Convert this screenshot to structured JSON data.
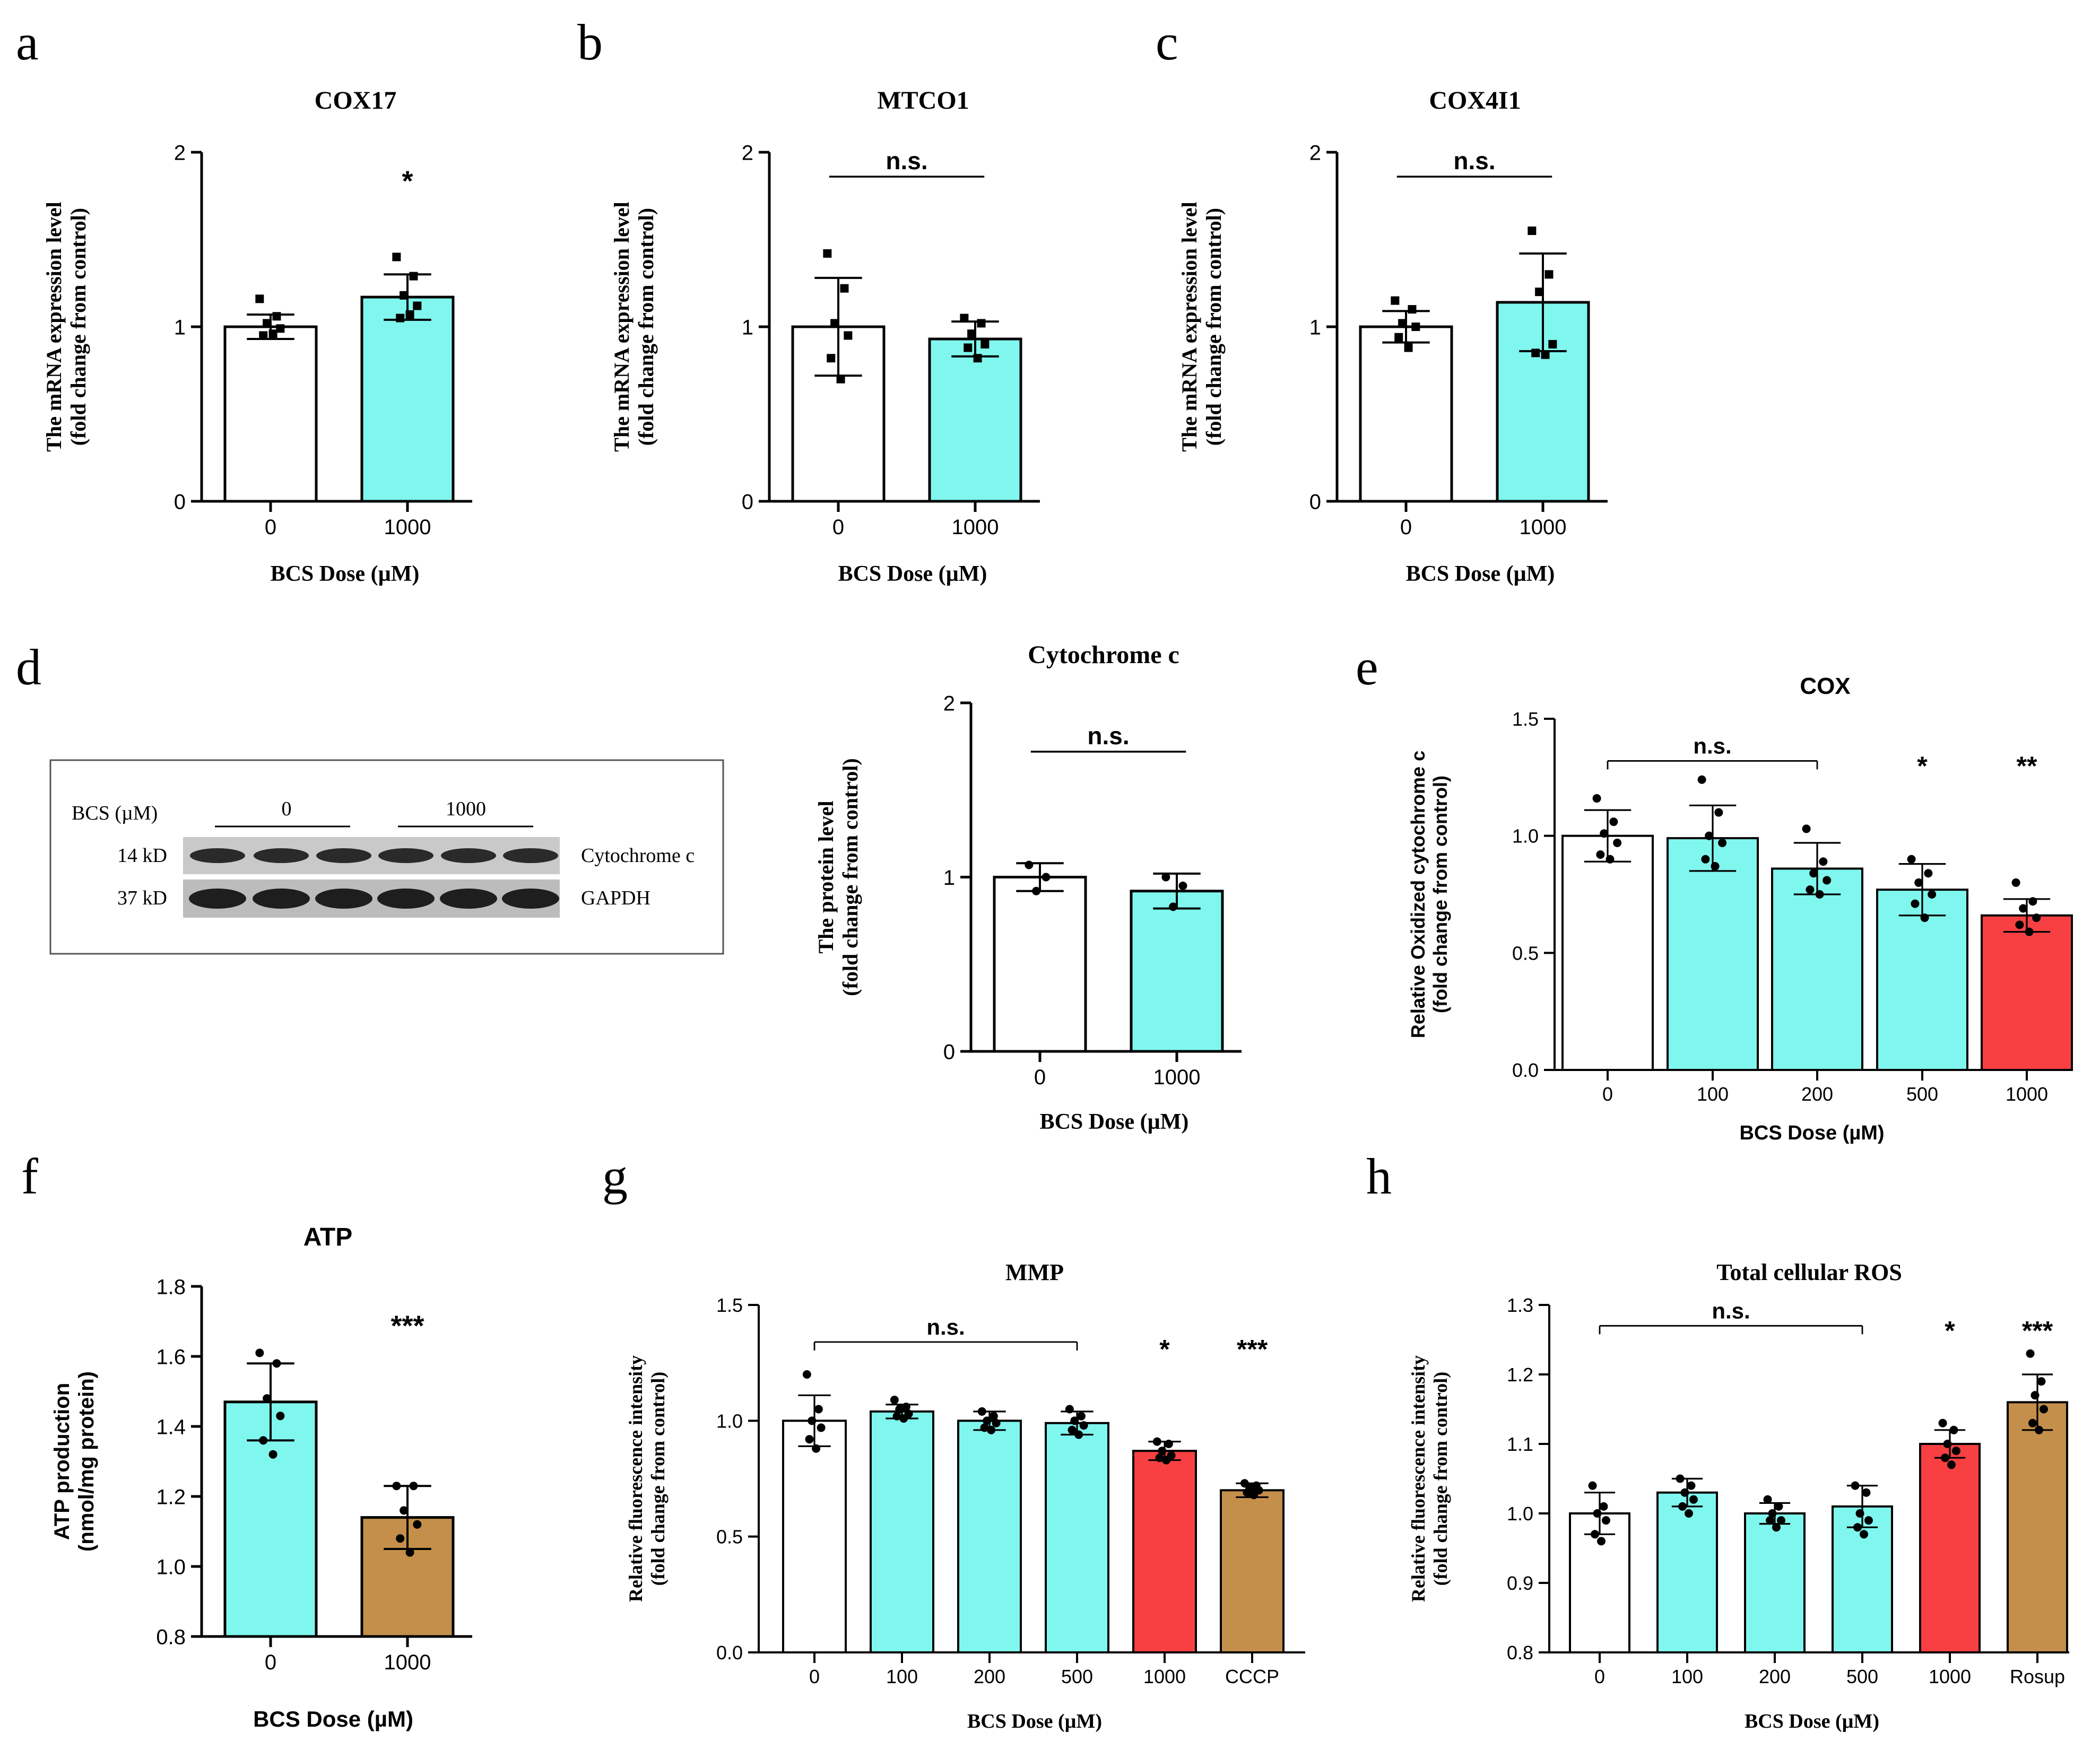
{
  "colors": {
    "white": "#ffffff",
    "cyan": "#80f7ee",
    "red": "#f84043",
    "tan": "#c38f4a",
    "black": "#000000",
    "blot_border": "#555555"
  },
  "panels": {
    "a": {
      "letter": "a"
    },
    "b": {
      "letter": "b"
    },
    "c": {
      "letter": "c"
    },
    "d": {
      "letter": "d"
    },
    "e": {
      "letter": "e"
    },
    "f": {
      "letter": "f"
    },
    "g": {
      "letter": "g"
    },
    "h": {
      "letter": "h"
    }
  },
  "blot": {
    "bcs_label": "BCS (µM)",
    "group_0": "0",
    "group_1000": "1000",
    "row1_kd": "14 kD",
    "row1_name": "Cytochrome c",
    "row2_kd": "37 kD",
    "row2_name": "GAPDH"
  },
  "chart_data": [
    {
      "id": "a",
      "type": "bar",
      "title": "COX17",
      "xlabel": "BCS Dose (µM)",
      "ylabel": [
        "The mRNA expression level",
        "(fold change from control)"
      ],
      "ylim": [
        0,
        2
      ],
      "yticks": [
        "0",
        "1",
        "2"
      ],
      "categories": [
        "0",
        "1000"
      ],
      "values": [
        1.0,
        1.17
      ],
      "errors": [
        0.07,
        0.13
      ],
      "colors": [
        "white",
        "cyan"
      ],
      "points": [
        [
          1.16,
          1.06,
          1.02,
          0.99,
          0.95,
          0.96
        ],
        [
          1.4,
          1.29,
          1.18,
          1.12,
          1.05,
          1.07
        ]
      ],
      "annotations": [
        {
          "text": "*",
          "cat": 1,
          "y": 1.78,
          "kind": "star"
        }
      ],
      "brackets": []
    },
    {
      "id": "b",
      "type": "bar",
      "title": "MTCO1",
      "xlabel": "BCS Dose (µM)",
      "ylabel": [
        "The mRNA expression level",
        "(fold change from control)"
      ],
      "ylim": [
        0,
        2
      ],
      "yticks": [
        "0",
        "1",
        "2"
      ],
      "categories": [
        "0",
        "1000"
      ],
      "values": [
        1.0,
        0.93
      ],
      "errors": [
        0.28,
        0.1
      ],
      "colors": [
        "white",
        "cyan"
      ],
      "points": [
        [
          1.42,
          1.22,
          1.02,
          0.95,
          0.82,
          0.7
        ],
        [
          1.05,
          1.02,
          0.96,
          0.9,
          0.88,
          0.82
        ]
      ],
      "annotations": [],
      "brackets": [
        {
          "from": 0,
          "to": 1,
          "y": 1.86,
          "text": "n.s."
        }
      ]
    },
    {
      "id": "c",
      "type": "bar",
      "title": "COX4I1",
      "xlabel": "BCS Dose (µM)",
      "ylabel": [
        "The mRNA expression level",
        "(fold change from control)"
      ],
      "ylim": [
        0,
        2
      ],
      "yticks": [
        "0",
        "1",
        "2"
      ],
      "categories": [
        "0",
        "1000"
      ],
      "values": [
        1.0,
        1.14
      ],
      "errors": [
        0.09,
        0.28
      ],
      "colors": [
        "white",
        "cyan"
      ],
      "points": [
        [
          1.15,
          1.1,
          1.02,
          1.0,
          0.94,
          0.88
        ],
        [
          1.55,
          1.3,
          1.2,
          0.9,
          0.85,
          0.84
        ]
      ],
      "annotations": [],
      "brackets": [
        {
          "from": 0,
          "to": 1,
          "y": 1.86,
          "text": "n.s."
        }
      ]
    },
    {
      "id": "d",
      "type": "bar",
      "title": "Cytochrome c",
      "xlabel": "BCS Dose (µM)",
      "ylabel": [
        "The protein level",
        "(fold change from control)"
      ],
      "ylim": [
        0,
        2
      ],
      "yticks": [
        "0",
        "1",
        "2"
      ],
      "categories": [
        "0",
        "1000"
      ],
      "values": [
        1.0,
        0.92
      ],
      "errors": [
        0.08,
        0.1
      ],
      "colors": [
        "white",
        "cyan"
      ],
      "points": [
        [
          1.07,
          1.0,
          0.92
        ],
        [
          1.0,
          0.95,
          0.83
        ]
      ],
      "annotations": [],
      "brackets": [
        {
          "from": 0,
          "to": 1,
          "y": 1.72,
          "text": "n.s."
        }
      ]
    },
    {
      "id": "e",
      "type": "bar",
      "title": "COX",
      "xlabel": "BCS Dose (µM)",
      "ylabel": [
        "Relative Oxidized cytochrome c",
        "(fold change from control)"
      ],
      "ylim": [
        0,
        1.5
      ],
      "yticks": [
        "0.0",
        "0.5",
        "1.0",
        "1.5"
      ],
      "categories": [
        "0",
        "100",
        "200",
        "500",
        "1000"
      ],
      "values": [
        1.0,
        0.99,
        0.86,
        0.77,
        0.66
      ],
      "errors": [
        0.11,
        0.14,
        0.11,
        0.11,
        0.07
      ],
      "colors": [
        "white",
        "cyan",
        "cyan",
        "cyan",
        "red"
      ],
      "points": [
        [
          1.16,
          1.06,
          1.01,
          0.97,
          0.92,
          0.9
        ],
        [
          1.24,
          1.1,
          1.0,
          0.97,
          0.9,
          0.87
        ],
        [
          1.03,
          0.89,
          0.84,
          0.81,
          0.77,
          0.75
        ],
        [
          0.9,
          0.84,
          0.8,
          0.75,
          0.71,
          0.65
        ],
        [
          0.8,
          0.72,
          0.69,
          0.65,
          0.62,
          0.59
        ]
      ],
      "annotations": [
        {
          "text": "*",
          "cat": 3,
          "y": 1.26,
          "kind": "star"
        },
        {
          "text": "**",
          "cat": 4,
          "y": 1.26,
          "kind": "star"
        }
      ],
      "brackets": [
        {
          "from": 0,
          "to": 2,
          "y": 1.32,
          "text": "n.s."
        }
      ]
    },
    {
      "id": "f",
      "type": "bar",
      "title": "ATP",
      "xlabel": "BCS Dose (µM)",
      "ylabel": [
        "ATP production",
        "(nmol/mg protein)"
      ],
      "ylim": [
        0.8,
        1.8
      ],
      "yticks": [
        "0.8",
        "1.0",
        "1.2",
        "1.4",
        "1.6",
        "1.8"
      ],
      "categories": [
        "0",
        "1000"
      ],
      "values": [
        1.47,
        1.14
      ],
      "errors": [
        0.11,
        0.09
      ],
      "colors": [
        "cyan",
        "tan"
      ],
      "points": [
        [
          1.61,
          1.58,
          1.48,
          1.43,
          1.36,
          1.32
        ],
        [
          1.23,
          1.23,
          1.16,
          1.12,
          1.08,
          1.04
        ]
      ],
      "annotations": [
        {
          "text": "***",
          "cat": 1,
          "y": 1.66,
          "kind": "star"
        }
      ],
      "brackets": []
    },
    {
      "id": "g",
      "type": "bar",
      "title": "MMP",
      "xlabel": "BCS Dose (µM)",
      "ylabel": [
        "Relative fluorescence intensity",
        "(fold change from control)"
      ],
      "ylim": [
        0,
        1.5
      ],
      "yticks": [
        "0.0",
        "0.5",
        "1.0",
        "1.5"
      ],
      "categories": [
        "0",
        "100",
        "200",
        "500",
        "1000",
        "CCCP"
      ],
      "values": [
        1.0,
        1.04,
        1.0,
        0.99,
        0.87,
        0.7
      ],
      "errors": [
        0.11,
        0.03,
        0.04,
        0.05,
        0.04,
        0.03
      ],
      "colors": [
        "white",
        "cyan",
        "cyan",
        "cyan",
        "red",
        "tan"
      ],
      "points": [
        [
          1.2,
          1.05,
          1.0,
          0.97,
          0.92,
          0.88
        ],
        [
          1.09,
          1.06,
          1.05,
          1.03,
          1.02,
          1.01
        ],
        [
          1.04,
          1.02,
          1.0,
          0.99,
          0.97,
          0.96
        ],
        [
          1.05,
          1.02,
          1.0,
          0.98,
          0.96,
          0.94
        ],
        [
          0.91,
          0.9,
          0.87,
          0.85,
          0.84,
          0.83
        ],
        [
          0.73,
          0.72,
          0.71,
          0.7,
          0.69,
          0.68
        ]
      ],
      "annotations": [
        {
          "text": "*",
          "cat": 4,
          "y": 1.27,
          "kind": "star"
        },
        {
          "text": "***",
          "cat": 5,
          "y": 1.27,
          "kind": "star"
        }
      ],
      "brackets": [
        {
          "from": 0,
          "to": 3,
          "y": 1.34,
          "text": "n.s."
        }
      ]
    },
    {
      "id": "h",
      "type": "bar",
      "title": "Total cellular ROS",
      "xlabel": "BCS Dose (µM)",
      "ylabel": [
        "Relative fluorescence intensity",
        "(fold change from control)"
      ],
      "ylim": [
        0.8,
        1.3
      ],
      "yticks": [
        "0.8",
        "0.9",
        "1.0",
        "1.1",
        "1.2",
        "1.3"
      ],
      "categories": [
        "0",
        "100",
        "200",
        "500",
        "1000",
        "Rosup"
      ],
      "values": [
        1.0,
        1.03,
        1.0,
        1.01,
        1.1,
        1.16
      ],
      "errors": [
        0.03,
        0.02,
        0.015,
        0.03,
        0.02,
        0.04
      ],
      "colors": [
        "white",
        "cyan",
        "cyan",
        "cyan",
        "red",
        "tan"
      ],
      "points": [
        [
          1.04,
          1.01,
          1.0,
          0.99,
          0.97,
          0.96
        ],
        [
          1.05,
          1.04,
          1.03,
          1.02,
          1.01,
          1.0
        ],
        [
          1.02,
          1.01,
          1.0,
          0.99,
          0.99,
          0.98
        ],
        [
          1.04,
          1.03,
          1.0,
          0.99,
          0.98,
          0.97
        ],
        [
          1.13,
          1.12,
          1.1,
          1.09,
          1.08,
          1.07
        ],
        [
          1.23,
          1.19,
          1.17,
          1.15,
          1.13,
          1.12
        ]
      ],
      "annotations": [
        {
          "text": "*",
          "cat": 4,
          "y": 1.25,
          "kind": "star"
        },
        {
          "text": "***",
          "cat": 5,
          "y": 1.25,
          "kind": "star"
        }
      ],
      "brackets": [
        {
          "from": 0,
          "to": 3,
          "y": 1.27,
          "text": "n.s."
        }
      ]
    }
  ]
}
